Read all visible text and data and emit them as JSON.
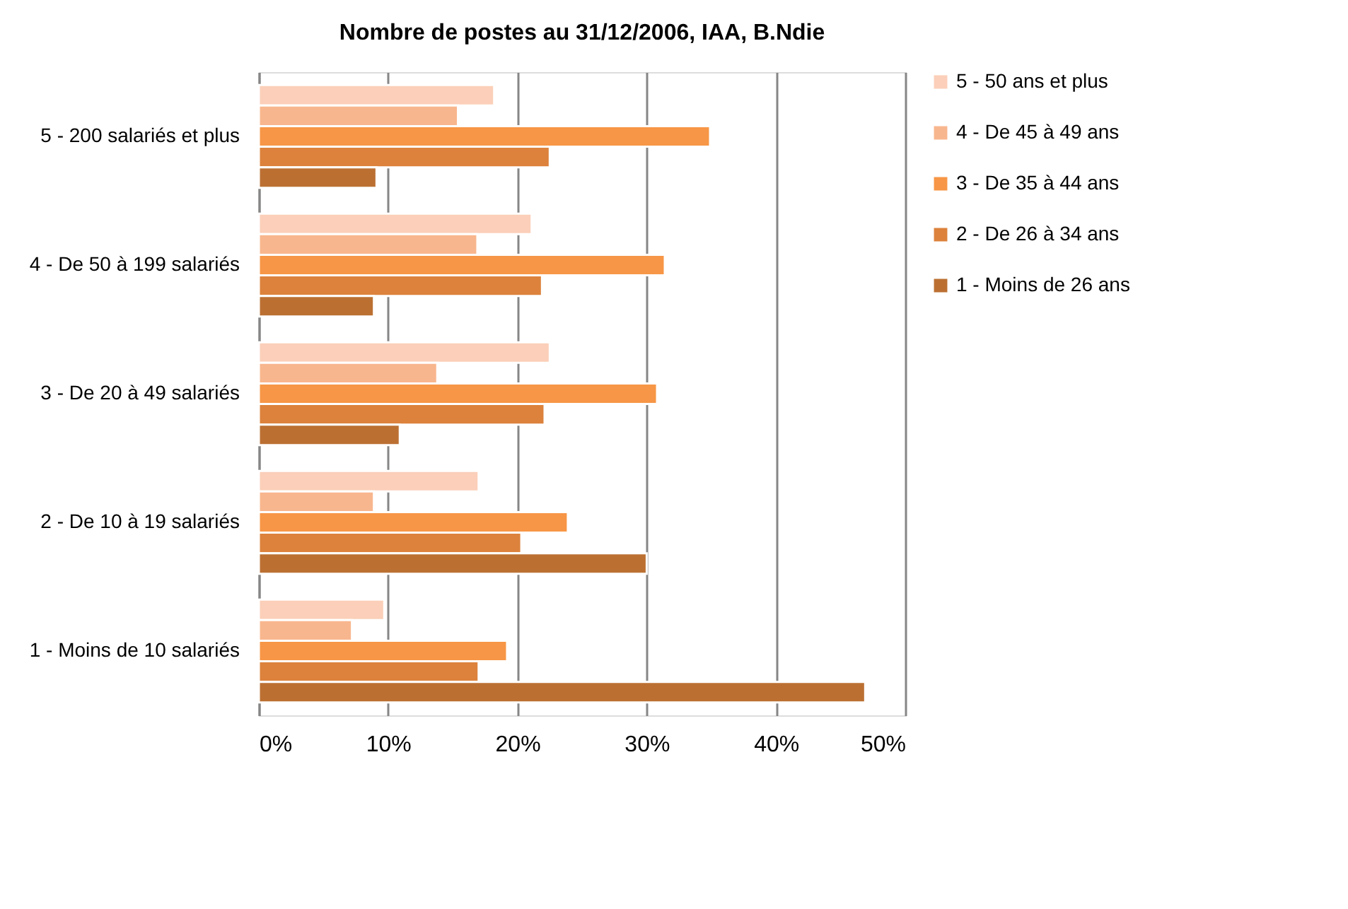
{
  "chart_data": {
    "type": "bar",
    "orientation": "horizontal",
    "title": "Nombre de postes au 31/12/2006, IAA, B.Ndie",
    "categories": [
      "5 - 200 salariés et plus",
      "4 - De 50 à 199 salariés",
      "3 - De 20 à 49 salariés",
      "2 - De 10 à 19 salariés",
      "1 - Moins de 10 salariés"
    ],
    "series": [
      {
        "name": "5 - 50 ans et plus",
        "color": "#fbcfb9",
        "values": [
          18.2,
          21.1,
          22.5,
          17.0,
          9.7
        ]
      },
      {
        "name": "4 - De 45 à 49 ans",
        "color": "#f8b68e",
        "values": [
          15.4,
          16.9,
          13.8,
          8.9,
          7.2
        ]
      },
      {
        "name": "3 - De 35 à 44 ans",
        "color": "#f79646",
        "values": [
          34.9,
          31.4,
          30.8,
          23.9,
          19.2
        ]
      },
      {
        "name": "2 - De 26 à 34 ans",
        "color": "#dc823c",
        "values": [
          22.5,
          21.9,
          22.1,
          20.3,
          17.0
        ]
      },
      {
        "name": "1 - Moins de 26 ans",
        "color": "#bb7032",
        "values": [
          9.1,
          8.9,
          10.9,
          30.0,
          46.9
        ]
      }
    ],
    "xlim": [
      0,
      50
    ],
    "xticks": [
      {
        "value": 0,
        "label": "0%"
      },
      {
        "value": 10,
        "label": "10%"
      },
      {
        "value": 20,
        "label": "20%"
      },
      {
        "value": 30,
        "label": "30%"
      },
      {
        "value": 40,
        "label": "40%"
      },
      {
        "value": 50,
        "label": "50%"
      }
    ],
    "grid": "x",
    "legend": "right"
  }
}
